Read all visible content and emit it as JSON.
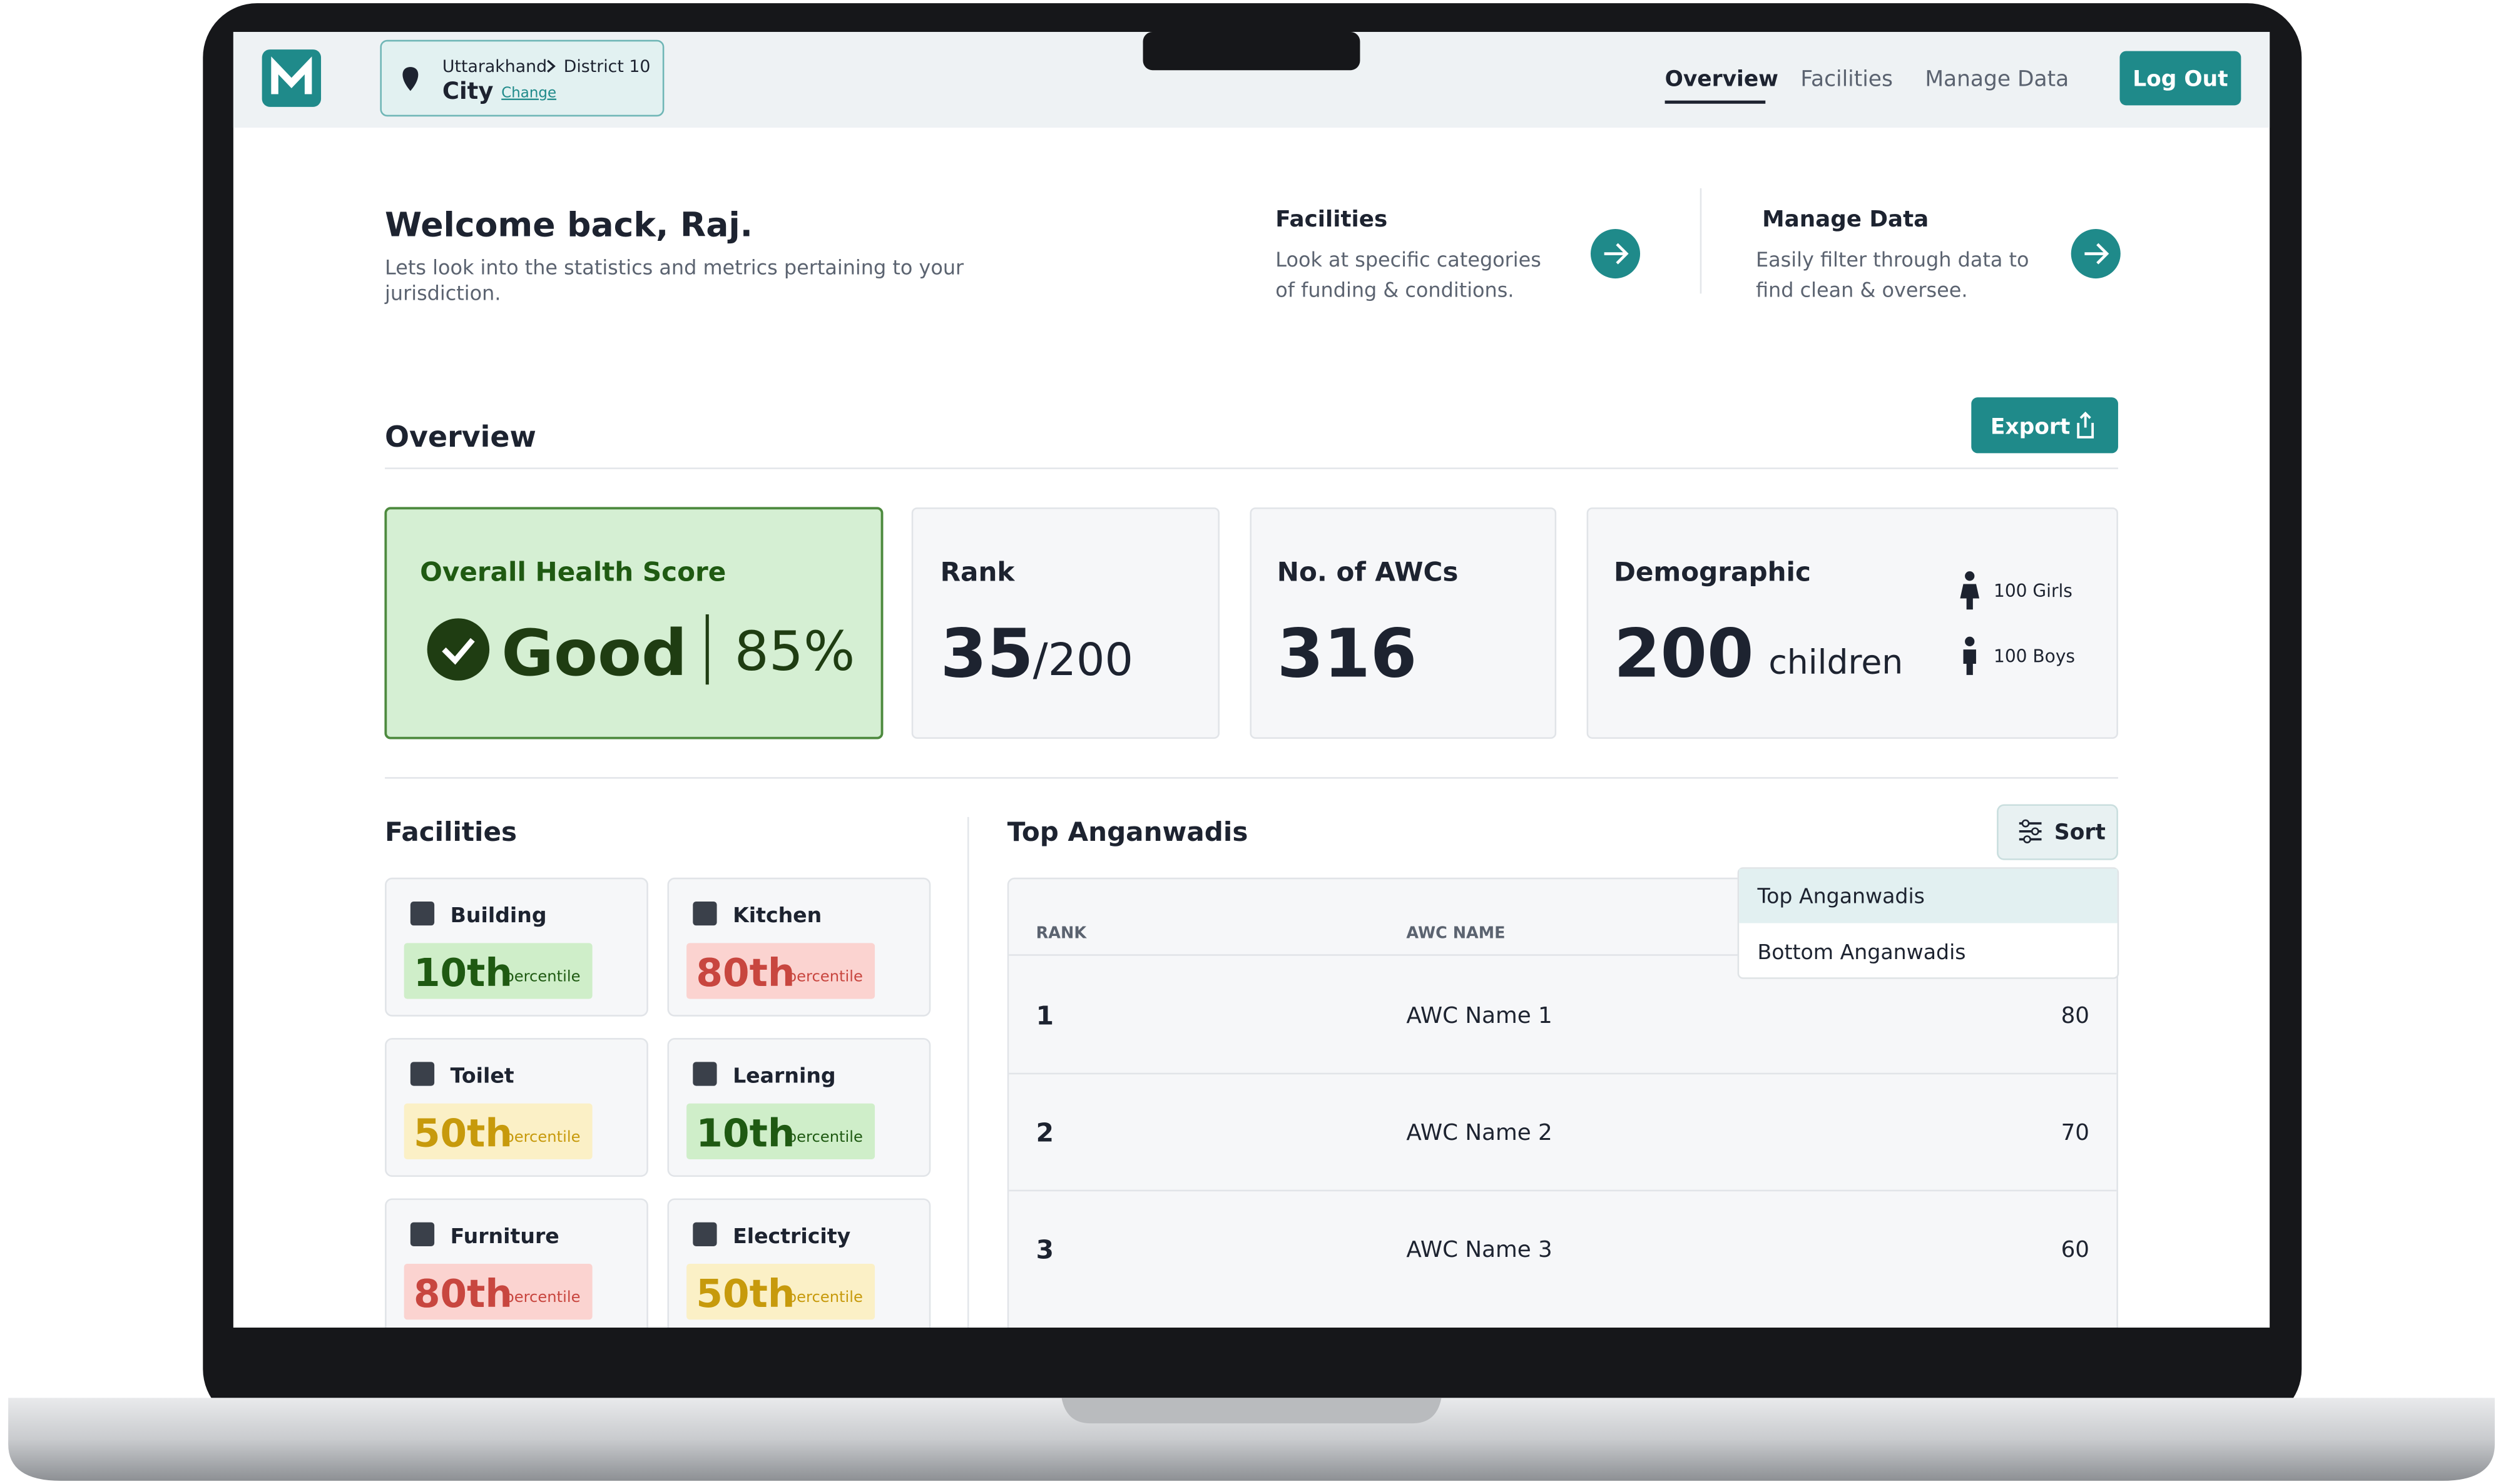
{
  "header": {
    "breadcrumb": [
      "Uttarakhand",
      "District 10"
    ],
    "location": "City",
    "change": "Change",
    "nav": [
      "Overview",
      "Facilities",
      "Manage Data"
    ],
    "logout": "Log Out"
  },
  "welcome": {
    "title": "Welcome back, Raj.",
    "subtitle": [
      "Lets look into the statistics and metrics pertaining to your",
      "jurisdiction."
    ]
  },
  "shortcuts": [
    {
      "title": "Facilities",
      "text": [
        "Look at specific categories",
        "of funding & conditions."
      ]
    },
    {
      "title": "Manage Data",
      "text": [
        "Easily filter through data to",
        "find clean & oversee."
      ]
    }
  ],
  "overview": {
    "title": "Overview",
    "export": "Export",
    "health": {
      "label": "Overall Health Score",
      "rating": "Good",
      "percent": "85%"
    },
    "rank": {
      "label": "Rank",
      "value": "35",
      "total": "/200"
    },
    "awcs": {
      "label": "No. of AWCs",
      "value": "316"
    },
    "demographic": {
      "label": "Demographic",
      "value": "200",
      "unit": "children",
      "girls": "100 Girls",
      "boys": "100 Boys"
    }
  },
  "facilities": {
    "title": "Facilities",
    "items": [
      {
        "name": "Building",
        "rank": "10th",
        "unit": "percentile",
        "color": "#1f5a12",
        "background": "#cfeec9"
      },
      {
        "name": "Kitchen",
        "rank": "80th",
        "unit": "percentile",
        "color": "#c8463f",
        "background": "#fbd3d0"
      },
      {
        "name": "Toilet",
        "rank": "50th",
        "unit": "percentile",
        "color": "#c79a0c",
        "background": "#fbf0c6"
      },
      {
        "name": "Learning",
        "rank": "10th",
        "unit": "percentile",
        "color": "#1f5a12",
        "background": "#cfeec9"
      },
      {
        "name": "Furniture",
        "rank": "80th",
        "unit": "percentile",
        "color": "#c8463f",
        "background": "#fbd3d0"
      },
      {
        "name": "Electricity",
        "rank": "50th",
        "unit": "percentile",
        "color": "#c79a0c",
        "background": "#fbf0c6"
      }
    ]
  },
  "table": {
    "title": "Top Anganwadis",
    "sort": "Sort",
    "columns": [
      "RANK",
      "AWC NAME"
    ],
    "rows": [
      [
        "1",
        "AWC Name 1",
        "80"
      ],
      [
        "2",
        "AWC Name 2",
        "70"
      ],
      [
        "3",
        "AWC Name 3",
        "60"
      ]
    ],
    "dropdown": [
      "Top Anganwadis",
      "Bottom Anganwadis"
    ]
  }
}
